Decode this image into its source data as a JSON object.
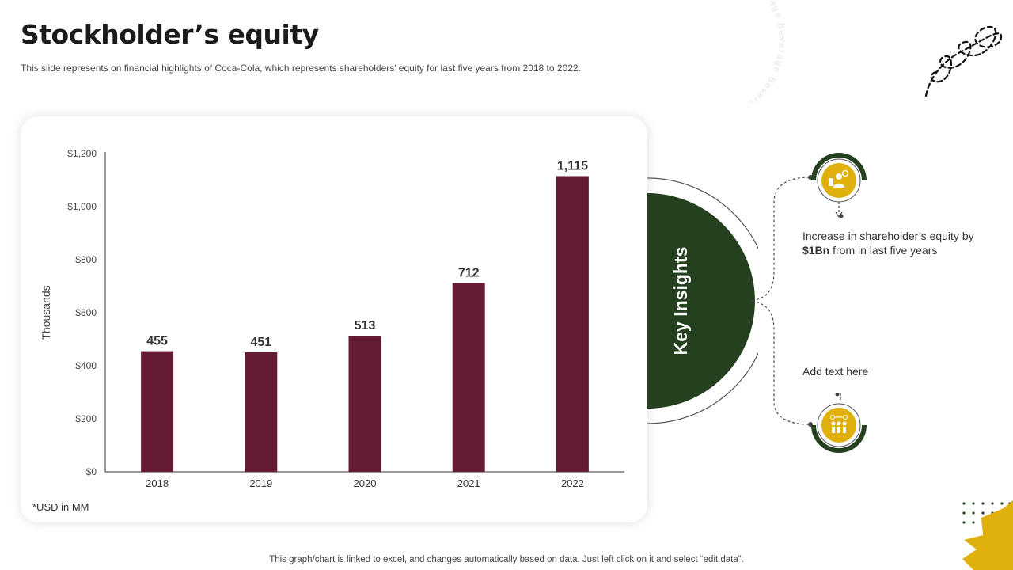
{
  "header": {
    "title": "Stockholder’s equity",
    "subtitle": "This slide represents on financial highlights of Coca-Cola, which represents shareholders’ equity for last five years from 2018 to 2022."
  },
  "decor": {
    "ring_text": "Beverage Beverage Beverage Beverage "
  },
  "chart_data": {
    "type": "bar",
    "title": "",
    "xlabel": "",
    "ylabel": "Thousands",
    "categories": [
      "2018",
      "2019",
      "2020",
      "2021",
      "2022"
    ],
    "values": [
      455,
      451,
      513,
      712,
      1115
    ],
    "data_labels": [
      "455",
      "451",
      "513",
      "712",
      "1,115"
    ],
    "ylim": [
      0,
      1200
    ],
    "yticks": [
      0,
      200,
      400,
      600,
      800,
      1000,
      1200
    ],
    "ytick_labels": [
      "$0",
      "$200",
      "$400",
      "$600",
      "$800",
      "$1,000",
      "$1,200"
    ],
    "bar_color": "#661b35",
    "grid": false,
    "legend": "none"
  },
  "chart": {
    "footnote": "*USD in MM"
  },
  "insights": {
    "heading": "Key Insights",
    "item1_pre": "Increase in shareholder’s equity by ",
    "item1_bold": "$1Bn",
    "item1_post": " from in last five years",
    "item2": "Add text here",
    "icon1": "business-person-icon",
    "icon2": "team-icon"
  },
  "colors": {
    "dark_green": "#24401e",
    "gold": "#e0b00d",
    "maroon": "#661b35"
  },
  "footer": {
    "note": "This graph/chart is linked to excel,  and changes automatically based on data. Just left click on it and select “edit data”."
  }
}
